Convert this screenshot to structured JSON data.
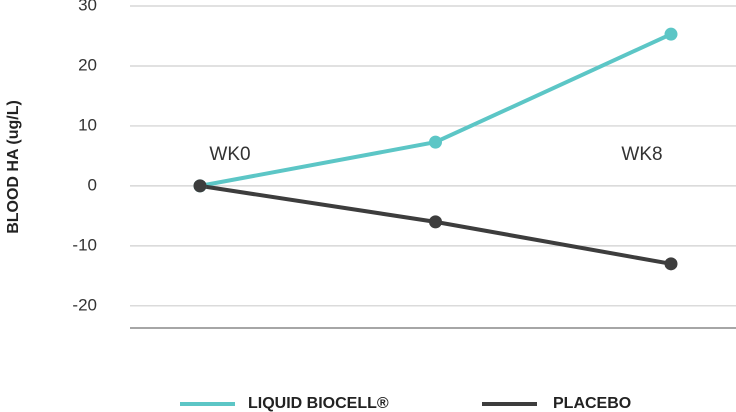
{
  "chart_data": {
    "type": "line",
    "y_label": "BLOOD HA (ug/L)",
    "categories": [
      null,
      null,
      null
    ],
    "series": [
      {
        "name": "LIQUID BIOCELL®",
        "color": "#5cc6c6",
        "values": [
          0,
          7.3,
          25.3
        ]
      },
      {
        "name": "PLACEBO",
        "color": "#3d3d3d",
        "values": [
          0,
          -6,
          -13
        ]
      }
    ],
    "annotations": [
      "WK0",
      "WK8"
    ],
    "ylim": [
      -23.7,
      30
    ],
    "yticks": [
      -20,
      -10,
      0,
      10,
      20,
      30
    ],
    "grid": true
  }
}
